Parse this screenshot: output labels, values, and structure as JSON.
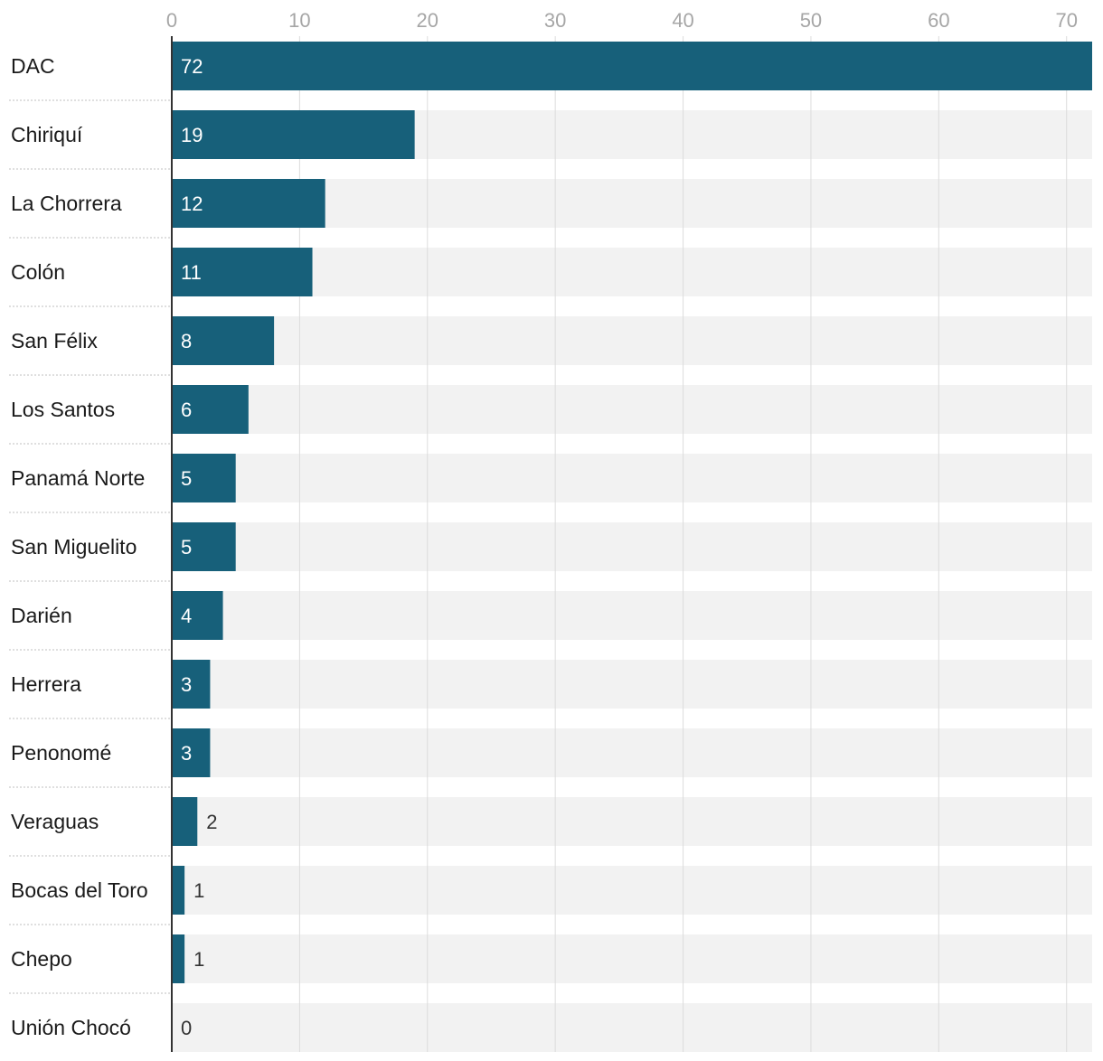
{
  "chart_data": {
    "type": "bar",
    "orientation": "horizontal",
    "title": "",
    "xlabel": "",
    "ylabel": "",
    "xlim": [
      0,
      72
    ],
    "ticks": [
      0,
      10,
      20,
      30,
      40,
      50,
      60,
      70
    ],
    "grid": true,
    "categories": [
      "DAC",
      "Chiriquí",
      "La Chorrera",
      "Colón",
      "San Félix",
      "Los Santos",
      "Panamá Norte",
      "San Miguelito",
      "Darién",
      "Herrera",
      "Penonomé",
      "Veraguas",
      "Bocas del Toro",
      "Chepo",
      "Unión Chocó"
    ],
    "values": [
      72,
      19,
      12,
      11,
      8,
      6,
      5,
      5,
      4,
      3,
      3,
      2,
      1,
      1,
      0
    ]
  },
  "colors": {
    "bar": "#17607a",
    "track": "#f2f2f2",
    "grid": "#dcdcdc",
    "axis": "#333333",
    "separator": "#bfbfbf"
  }
}
